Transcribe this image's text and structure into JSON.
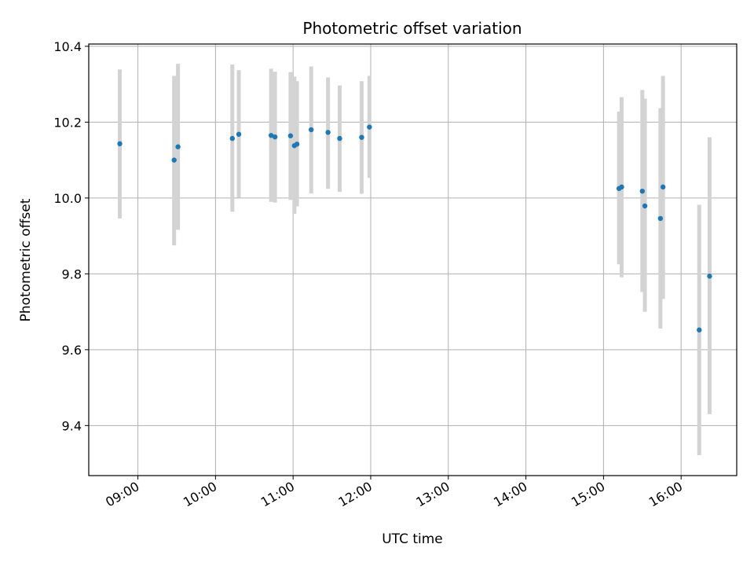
{
  "chart_data": {
    "type": "scatter",
    "title": "Photometric offset variation",
    "xlabel": "UTC time",
    "ylabel": "Photometric offset",
    "x_axis_type": "time",
    "x_tick_labels": [
      "09:00",
      "10:00",
      "11:00",
      "12:00",
      "13:00",
      "14:00",
      "15:00",
      "16:00"
    ],
    "x_ticks": [
      "09:00",
      "10:00",
      "11:00",
      "12:00",
      "13:00",
      "14:00",
      "15:00",
      "16:00"
    ],
    "xlim": [
      "08:22",
      "16:43"
    ],
    "ylim": [
      9.268,
      10.406
    ],
    "y_ticks": [
      9.4,
      9.6,
      9.8,
      10.0,
      10.2,
      10.4
    ],
    "y_tick_labels": [
      "9.4",
      "9.6",
      "9.8",
      "10.0",
      "10.2",
      "10.4"
    ],
    "grid": true,
    "colors": {
      "points": "#1f77b4",
      "error_bars": "#d3d3d3",
      "grid": "#b0b0b0"
    },
    "points": [
      {
        "x": "08:46",
        "y": 10.143,
        "y_low": 9.946,
        "y_high": 10.339
      },
      {
        "x": "09:28",
        "y": 10.1,
        "y_low": 9.875,
        "y_high": 10.322
      },
      {
        "x": "09:31",
        "y": 10.135,
        "y_low": 9.916,
        "y_high": 10.354
      },
      {
        "x": "10:13",
        "y": 10.157,
        "y_low": 9.964,
        "y_high": 10.352
      },
      {
        "x": "10:18",
        "y": 10.168,
        "y_low": 10.001,
        "y_high": 10.337
      },
      {
        "x": "10:43",
        "y": 10.165,
        "y_low": 9.99,
        "y_high": 10.341
      },
      {
        "x": "10:46",
        "y": 10.161,
        "y_low": 9.988,
        "y_high": 10.333
      },
      {
        "x": "10:58",
        "y": 10.164,
        "y_low": 9.995,
        "y_high": 10.332
      },
      {
        "x": "11:01",
        "y": 10.138,
        "y_low": 9.958,
        "y_high": 10.32
      },
      {
        "x": "11:03",
        "y": 10.142,
        "y_low": 9.978,
        "y_high": 10.308
      },
      {
        "x": "11:14",
        "y": 10.18,
        "y_low": 10.012,
        "y_high": 10.347
      },
      {
        "x": "11:27",
        "y": 10.173,
        "y_low": 10.024,
        "y_high": 10.318
      },
      {
        "x": "11:36",
        "y": 10.157,
        "y_low": 10.016,
        "y_high": 10.297
      },
      {
        "x": "11:53",
        "y": 10.16,
        "y_low": 10.011,
        "y_high": 10.308
      },
      {
        "x": "11:59",
        "y": 10.187,
        "y_low": 10.053,
        "y_high": 10.322
      },
      {
        "x": "15:12",
        "y": 10.025,
        "y_low": 9.825,
        "y_high": 10.228
      },
      {
        "x": "15:14",
        "y": 10.029,
        "y_low": 9.791,
        "y_high": 10.266
      },
      {
        "x": "15:30",
        "y": 10.018,
        "y_low": 9.752,
        "y_high": 10.285
      },
      {
        "x": "15:32",
        "y": 9.979,
        "y_low": 9.7,
        "y_high": 10.262
      },
      {
        "x": "15:44",
        "y": 9.946,
        "y_low": 9.656,
        "y_high": 10.237
      },
      {
        "x": "15:46",
        "y": 10.029,
        "y_low": 9.734,
        "y_high": 10.322
      },
      {
        "x": "16:14",
        "y": 9.652,
        "y_low": 9.322,
        "y_high": 9.982
      },
      {
        "x": "16:22",
        "y": 9.794,
        "y_low": 9.43,
        "y_high": 10.16
      }
    ]
  }
}
